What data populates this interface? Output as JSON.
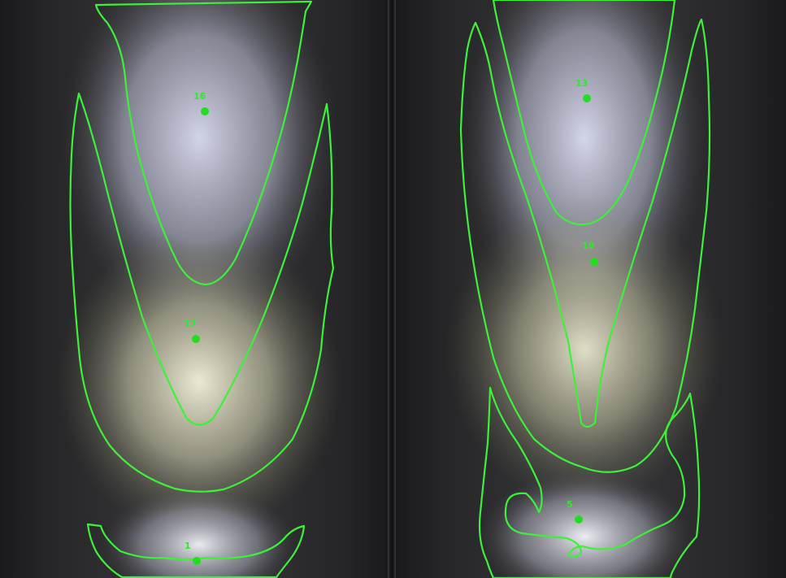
{
  "views": [
    {
      "id": "left",
      "markers": [
        {
          "label": "16"
        },
        {
          "label": "17"
        },
        {
          "label": "1"
        }
      ]
    },
    {
      "id": "right",
      "markers": [
        {
          "label": "13"
        },
        {
          "label": "19"
        },
        {
          "label": "5"
        }
      ]
    }
  ],
  "colors": {
    "contour": "#3df03a",
    "marker": "#22dd22",
    "cool_light": "#dcdff2",
    "warm_light": "#f2f0d8",
    "background": "#1b1b1d"
  }
}
